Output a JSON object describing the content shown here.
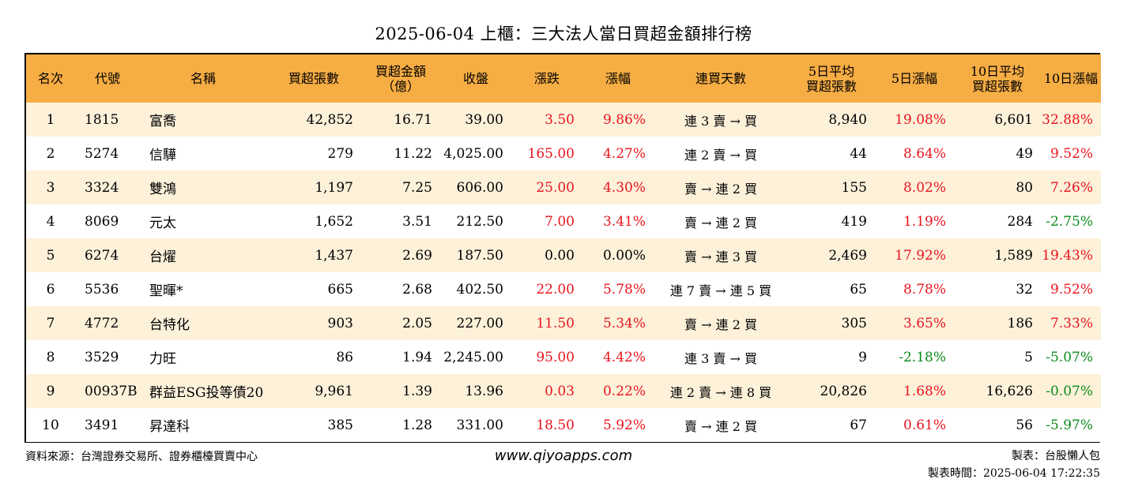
{
  "title": "2025-06-04 上櫃：三大法人當日買超金額排行榜",
  "colors": {
    "header_bg": "#f6ad44",
    "row_alt_bg": "#fdf1da",
    "up": "#e8141e",
    "down": "#0d8a1a"
  },
  "columns": [
    {
      "key": "rank",
      "label": "名次",
      "lines": [
        "名次"
      ],
      "align": "c"
    },
    {
      "key": "code",
      "label": "代號",
      "lines": [
        "代號"
      ],
      "align": "l"
    },
    {
      "key": "name",
      "label": "名稱",
      "lines": [
        "名稱"
      ],
      "align": "l"
    },
    {
      "key": "buy_shares",
      "label": "買超張數",
      "lines": [
        "買超張數"
      ],
      "align": "r"
    },
    {
      "key": "buy_amount",
      "label": "買超金額（億）",
      "lines": [
        "買超金額",
        "（億）"
      ],
      "align": "r"
    },
    {
      "key": "close",
      "label": "收盤",
      "lines": [
        "收盤"
      ],
      "align": "r"
    },
    {
      "key": "change",
      "label": "漲跌",
      "lines": [
        "漲跌"
      ],
      "align": "r"
    },
    {
      "key": "pct",
      "label": "漲幅",
      "lines": [
        "漲幅"
      ],
      "align": "r"
    },
    {
      "key": "streak",
      "label": "連買天數",
      "lines": [
        "連買天數"
      ],
      "align": "c"
    },
    {
      "key": "avg5_shares",
      "label": "5日平均買超張數",
      "lines": [
        "5日平均",
        "買超張數"
      ],
      "align": "r"
    },
    {
      "key": "pct5",
      "label": "5日漲幅",
      "lines": [
        "5日漲幅"
      ],
      "align": "r"
    },
    {
      "key": "avg10_shares",
      "label": "10日平均買超張數",
      "lines": [
        "10日平均",
        "買超張數"
      ],
      "align": "r"
    },
    {
      "key": "pct10",
      "label": "10日漲幅",
      "lines": [
        "10日漲幅"
      ],
      "align": "r"
    }
  ],
  "rows": [
    {
      "rank": "1",
      "code": "1815",
      "name": "富喬",
      "buy_shares": "42,852",
      "buy_amount": "16.71",
      "close": "39.00",
      "change": "3.50",
      "pct": "9.86%",
      "streak": "連 3 賣 → 買",
      "avg5_shares": "8,940",
      "pct5": "19.08%",
      "avg10_shares": "6,601",
      "pct10": "32.88%",
      "change_color": "red",
      "pct_color": "red",
      "pct5_color": "red",
      "pct10_color": "red"
    },
    {
      "rank": "2",
      "code": "5274",
      "name": "信驊",
      "buy_shares": "279",
      "buy_amount": "11.22",
      "close": "4,025.00",
      "change": "165.00",
      "pct": "4.27%",
      "streak": "連 2 賣 → 買",
      "avg5_shares": "44",
      "pct5": "8.64%",
      "avg10_shares": "49",
      "pct10": "9.52%",
      "change_color": "red",
      "pct_color": "red",
      "pct5_color": "red",
      "pct10_color": "red"
    },
    {
      "rank": "3",
      "code": "3324",
      "name": "雙鴻",
      "buy_shares": "1,197",
      "buy_amount": "7.25",
      "close": "606.00",
      "change": "25.00",
      "pct": "4.30%",
      "streak": "賣 → 連 2 買",
      "avg5_shares": "155",
      "pct5": "8.02%",
      "avg10_shares": "80",
      "pct10": "7.26%",
      "change_color": "red",
      "pct_color": "red",
      "pct5_color": "red",
      "pct10_color": "red"
    },
    {
      "rank": "4",
      "code": "8069",
      "name": "元太",
      "buy_shares": "1,652",
      "buy_amount": "3.51",
      "close": "212.50",
      "change": "7.00",
      "pct": "3.41%",
      "streak": "賣 → 連 2 買",
      "avg5_shares": "419",
      "pct5": "1.19%",
      "avg10_shares": "284",
      "pct10": "-2.75%",
      "change_color": "red",
      "pct_color": "red",
      "pct5_color": "red",
      "pct10_color": "green"
    },
    {
      "rank": "5",
      "code": "6274",
      "name": "台燿",
      "buy_shares": "1,437",
      "buy_amount": "2.69",
      "close": "187.50",
      "change": "0.00",
      "pct": "0.00%",
      "streak": "賣 → 連 3 買",
      "avg5_shares": "2,469",
      "pct5": "17.92%",
      "avg10_shares": "1,589",
      "pct10": "19.43%",
      "change_color": "black",
      "pct_color": "black",
      "pct5_color": "red",
      "pct10_color": "red"
    },
    {
      "rank": "6",
      "code": "5536",
      "name": "聖暉*",
      "buy_shares": "665",
      "buy_amount": "2.68",
      "close": "402.50",
      "change": "22.00",
      "pct": "5.78%",
      "streak": "連 7 賣 → 連 5 買",
      "avg5_shares": "65",
      "pct5": "8.78%",
      "avg10_shares": "32",
      "pct10": "9.52%",
      "change_color": "red",
      "pct_color": "red",
      "pct5_color": "red",
      "pct10_color": "red"
    },
    {
      "rank": "7",
      "code": "4772",
      "name": "台特化",
      "buy_shares": "903",
      "buy_amount": "2.05",
      "close": "227.00",
      "change": "11.50",
      "pct": "5.34%",
      "streak": "賣 → 連 2 買",
      "avg5_shares": "305",
      "pct5": "3.65%",
      "avg10_shares": "186",
      "pct10": "7.33%",
      "change_color": "red",
      "pct_color": "red",
      "pct5_color": "red",
      "pct10_color": "red"
    },
    {
      "rank": "8",
      "code": "3529",
      "name": "力旺",
      "buy_shares": "86",
      "buy_amount": "1.94",
      "close": "2,245.00",
      "change": "95.00",
      "pct": "4.42%",
      "streak": "連 3 賣 → 買",
      "avg5_shares": "9",
      "pct5": "-2.18%",
      "avg10_shares": "5",
      "pct10": "-5.07%",
      "change_color": "red",
      "pct_color": "red",
      "pct5_color": "green",
      "pct10_color": "green"
    },
    {
      "rank": "9",
      "code": "00937B",
      "name": "群益ESG投等債20",
      "buy_shares": "9,961",
      "buy_amount": "1.39",
      "close": "13.96",
      "change": "0.03",
      "pct": "0.22%",
      "streak": "連 2 賣 → 連 8 買",
      "avg5_shares": "20,826",
      "pct5": "1.68%",
      "avg10_shares": "16,626",
      "pct10": "-0.07%",
      "change_color": "red",
      "pct_color": "red",
      "pct5_color": "red",
      "pct10_color": "green"
    },
    {
      "rank": "10",
      "code": "3491",
      "name": "昇達科",
      "buy_shares": "385",
      "buy_amount": "1.28",
      "close": "331.00",
      "change": "18.50",
      "pct": "5.92%",
      "streak": "賣 → 連 2 買",
      "avg5_shares": "67",
      "pct5": "0.61%",
      "avg10_shares": "56",
      "pct10": "-5.97%",
      "change_color": "red",
      "pct_color": "red",
      "pct5_color": "red",
      "pct10_color": "green"
    }
  ],
  "footer": {
    "source": "資料來源：台灣證券交易所、證券櫃檯買賣中心",
    "website": "www.qiyoapps.com",
    "maker": "製表：台股懶人包",
    "made_time": "製表時間：2025-06-04 17:22:35"
  }
}
